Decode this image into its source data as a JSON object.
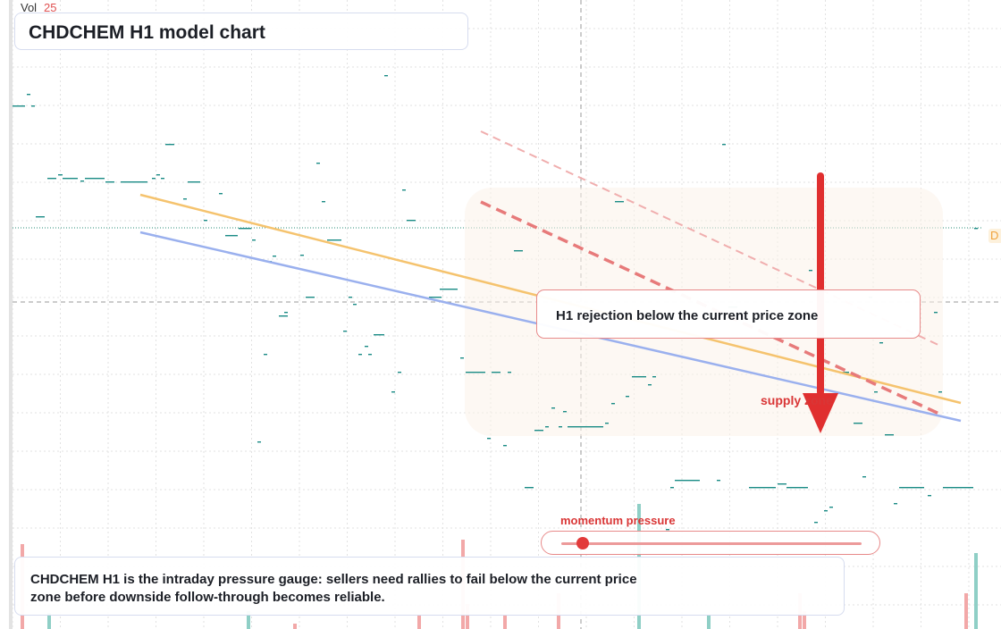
{
  "colors": {
    "grid": "#e2e2e2",
    "candle": "#1b8c86",
    "orange_line": "#f5c36e",
    "blue_line": "#9ab0ee",
    "red_dashed": "#e77a7a",
    "pink_dashed": "#f0aeae",
    "arrow": "#e02f2f",
    "volume_up": "#8fcfc6",
    "volume_down": "#f2a8a8",
    "callout_border": "#e88a8a",
    "box_border": "#d6dcef"
  },
  "header": {
    "vol_label": "Vol",
    "vol_value": "25"
  },
  "title": "CHDCHEM H1 model chart",
  "callout": "H1 rejection below the current price zone",
  "zone_label": "supply zone",
  "gauge": {
    "label": "momentum pressure",
    "value": 0.07
  },
  "note": "CHDCHEM H1 is the intraday pressure gauge: sellers need rallies to fail below the current price zone before downside follow-through becomes reliable.",
  "edge_tag": "D",
  "chart_data": {
    "type": "candlestick",
    "title": "CHDCHEM H1 model chart",
    "annotations": [
      "H1 rejection below the current price zone",
      "supply zone",
      "momentum pressure"
    ],
    "trendlines": [
      {
        "color": "orange",
        "style": "solid",
        "direction": "down"
      },
      {
        "color": "blue",
        "style": "solid",
        "direction": "down"
      },
      {
        "color": "red",
        "style": "dashed",
        "direction": "down"
      },
      {
        "color": "pink",
        "style": "dashed",
        "direction": "down"
      }
    ],
    "volume": [
      {
        "v": 0.95,
        "dir": "down"
      },
      {
        "v": 0.18,
        "dir": "up"
      },
      {
        "v": 0.2,
        "dir": "up"
      },
      {
        "v": 0.06,
        "dir": "down"
      },
      {
        "v": 0.15,
        "dir": "down"
      },
      {
        "v": 1.0,
        "dir": "down"
      },
      {
        "v": 0.28,
        "dir": "down"
      },
      {
        "v": 0.15,
        "dir": "down"
      },
      {
        "v": 0.4,
        "dir": "down"
      },
      {
        "v": 1.4,
        "dir": "up"
      },
      {
        "v": 0.15,
        "dir": "up"
      },
      {
        "v": 0.4,
        "dir": "down"
      },
      {
        "v": 0.2,
        "dir": "down"
      },
      {
        "v": 0.4,
        "dir": "down"
      },
      {
        "v": 0.42,
        "dir": "down"
      },
      {
        "v": 0.85,
        "dir": "up"
      }
    ],
    "grid": true
  }
}
